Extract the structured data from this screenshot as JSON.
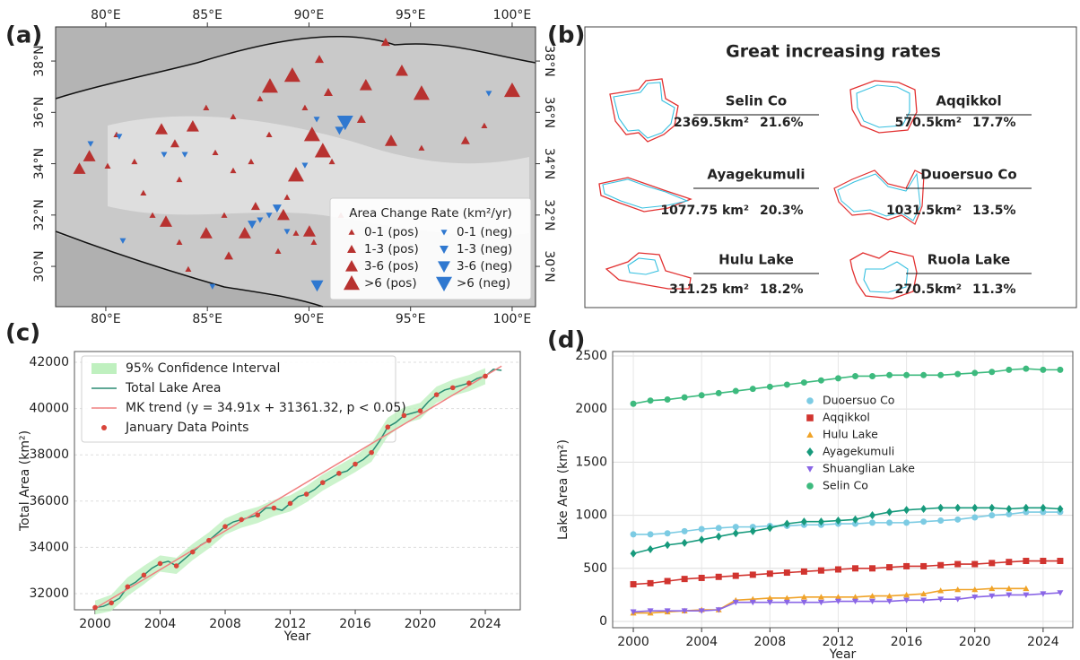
{
  "labels": {
    "a": "(a)",
    "b": "(b)",
    "c": "(c)",
    "d": "(d)"
  },
  "map": {
    "xlim": [
      77.53,
      101.15
    ],
    "ylim": [
      28.43,
      39.33
    ],
    "xticks": [
      {
        "value": 80,
        "label": "80°E"
      },
      {
        "value": 85,
        "label": "85°E"
      },
      {
        "value": 90,
        "label": "90°E"
      },
      {
        "value": 95,
        "label": "95°E"
      },
      {
        "value": 100,
        "label": "100°E"
      }
    ],
    "yticks": [
      {
        "value": 30,
        "label": "30°N"
      },
      {
        "value": 32,
        "label": "32°N"
      },
      {
        "value": 34,
        "label": "34°N"
      },
      {
        "value": 36,
        "label": "36°N"
      },
      {
        "value": 38,
        "label": "38°N"
      }
    ],
    "pos_color": "#b83230",
    "neg_color": "#2f78d0",
    "legend_title": "Area Change Rate (km²/yr)",
    "legend": [
      {
        "label": "0-1 (pos)"
      },
      {
        "label": "1-3 (pos)"
      },
      {
        "label": "3-6 (pos)"
      },
      {
        "label": ">6 (pos)"
      },
      {
        "label": "0-1 (neg)"
      },
      {
        "label": "1-3 (neg)"
      },
      {
        "label": "3-6 (neg)"
      },
      {
        "label": ">6 (neg)"
      }
    ],
    "points": [
      {
        "lon": 88.08,
        "lat": 37.02,
        "class": 3
      },
      {
        "lon": 89.18,
        "lat": 37.44,
        "class": 3
      },
      {
        "lon": 95.54,
        "lat": 36.74,
        "class": 3
      },
      {
        "lon": 100.0,
        "lat": 36.85,
        "class": 3
      },
      {
        "lon": 89.36,
        "lat": 33.56,
        "class": 3
      },
      {
        "lon": 90.15,
        "lat": 35.13,
        "class": 3
      },
      {
        "lon": 90.68,
        "lat": 34.5,
        "class": 3
      },
      {
        "lon": 91.78,
        "lat": 35.62,
        "class": 7
      },
      {
        "lon": 90.4,
        "lat": 29.26,
        "class": 6
      },
      {
        "lon": 82.74,
        "lat": 35.34,
        "class": 2
      },
      {
        "lon": 84.28,
        "lat": 35.45,
        "class": 2
      },
      {
        "lon": 78.7,
        "lat": 33.8,
        "class": 2
      },
      {
        "lon": 79.19,
        "lat": 34.29,
        "class": 2
      },
      {
        "lon": 90.02,
        "lat": 31.36,
        "class": 2
      },
      {
        "lon": 88.74,
        "lat": 32.0,
        "class": 2
      },
      {
        "lon": 86.84,
        "lat": 31.29,
        "class": 2
      },
      {
        "lon": 94.04,
        "lat": 34.89,
        "class": 2
      },
      {
        "lon": 94.57,
        "lat": 37.62,
        "class": 2
      },
      {
        "lon": 84.94,
        "lat": 31.29,
        "class": 2
      },
      {
        "lon": 82.96,
        "lat": 31.74,
        "class": 2
      },
      {
        "lon": 92.8,
        "lat": 37.06,
        "class": 2
      },
      {
        "lon": 93.77,
        "lat": 38.73,
        "class": 1
      },
      {
        "lon": 97.7,
        "lat": 34.9,
        "class": 1
      },
      {
        "lon": 90.95,
        "lat": 36.78,
        "class": 1
      },
      {
        "lon": 90.51,
        "lat": 38.07,
        "class": 1
      },
      {
        "lon": 92.58,
        "lat": 35.73,
        "class": 1
      },
      {
        "lon": 86.05,
        "lat": 30.41,
        "class": 1
      },
      {
        "lon": 87.37,
        "lat": 32.34,
        "class": 1
      },
      {
        "lon": 83.4,
        "lat": 34.78,
        "class": 1
      },
      {
        "lon": 80.53,
        "lat": 35.13,
        "class": 0
      },
      {
        "lon": 81.41,
        "lat": 34.08,
        "class": 0
      },
      {
        "lon": 81.85,
        "lat": 32.86,
        "class": 0
      },
      {
        "lon": 83.62,
        "lat": 33.38,
        "class": 0
      },
      {
        "lon": 85.39,
        "lat": 34.43,
        "class": 0
      },
      {
        "lon": 86.27,
        "lat": 35.83,
        "class": 0
      },
      {
        "lon": 87.15,
        "lat": 34.08,
        "class": 0
      },
      {
        "lon": 88.04,
        "lat": 35.13,
        "class": 0
      },
      {
        "lon": 83.62,
        "lat": 30.94,
        "class": 0
      },
      {
        "lon": 85.83,
        "lat": 31.99,
        "class": 0
      },
      {
        "lon": 82.3,
        "lat": 31.99,
        "class": 0
      },
      {
        "lon": 89.36,
        "lat": 31.29,
        "class": 0
      },
      {
        "lon": 88.48,
        "lat": 30.59,
        "class": 0
      },
      {
        "lon": 90.24,
        "lat": 30.94,
        "class": 0
      },
      {
        "lon": 91.13,
        "lat": 34.08,
        "class": 0
      },
      {
        "lon": 84.94,
        "lat": 36.18,
        "class": 0
      },
      {
        "lon": 87.59,
        "lat": 36.53,
        "class": 0
      },
      {
        "lon": 89.8,
        "lat": 36.18,
        "class": 0
      },
      {
        "lon": 95.54,
        "lat": 34.61,
        "class": 0
      },
      {
        "lon": 98.63,
        "lat": 35.48,
        "class": 0
      },
      {
        "lon": 80.09,
        "lat": 33.91,
        "class": 0
      },
      {
        "lon": 84.06,
        "lat": 29.89,
        "class": 0
      },
      {
        "lon": 91.57,
        "lat": 31.99,
        "class": 0
      },
      {
        "lon": 86.27,
        "lat": 33.73,
        "class": 0
      },
      {
        "lon": 88.92,
        "lat": 32.69,
        "class": 0
      },
      {
        "lon": 79.25,
        "lat": 34.78,
        "class": 4
      },
      {
        "lon": 80.66,
        "lat": 35.06,
        "class": 4
      },
      {
        "lon": 82.87,
        "lat": 34.36,
        "class": 4
      },
      {
        "lon": 83.89,
        "lat": 34.36,
        "class": 4
      },
      {
        "lon": 80.84,
        "lat": 31.0,
        "class": 4
      },
      {
        "lon": 85.25,
        "lat": 29.22,
        "class": 4
      },
      {
        "lon": 88.04,
        "lat": 31.99,
        "class": 4
      },
      {
        "lon": 87.59,
        "lat": 31.81,
        "class": 4
      },
      {
        "lon": 88.92,
        "lat": 31.36,
        "class": 4
      },
      {
        "lon": 90.38,
        "lat": 35.73,
        "class": 4
      },
      {
        "lon": 89.8,
        "lat": 33.94,
        "class": 4
      },
      {
        "lon": 98.85,
        "lat": 36.74,
        "class": 4
      },
      {
        "lon": 88.43,
        "lat": 32.27,
        "class": 5
      },
      {
        "lon": 87.2,
        "lat": 31.64,
        "class": 5
      },
      {
        "lon": 91.5,
        "lat": 35.3,
        "class": 5
      }
    ]
  },
  "outlines": {
    "title": "Great increasing rates",
    "lakes": [
      {
        "name": "Selin Co",
        "area": "2369.5km²",
        "rate": "21.6%"
      },
      {
        "name": "Aqqikkol",
        "area": "570.5km²",
        "rate": "17.7%"
      },
      {
        "name": "Ayagekumuli",
        "area": "1077.75 km²",
        "rate": "20.3%"
      },
      {
        "name": "Duoersuo Co",
        "area": "1031.5km²",
        "rate": "13.5%"
      },
      {
        "name": "Hulu Lake",
        "area": "311.25 km²",
        "rate": "18.2%"
      },
      {
        "name": "Ruola Lake",
        "area": "270.5km²",
        "rate": "11.3%"
      }
    ]
  },
  "chart_data": [
    {
      "type": "line",
      "xlabel": "Year",
      "ylabel": "Total Area (km²)",
      "xlim": [
        1998.73,
        2026.15
      ],
      "ylim": [
        31302,
        42465
      ],
      "xticks": [
        2000,
        2004,
        2008,
        2012,
        2016,
        2020,
        2024
      ],
      "yticks": [
        32000,
        34000,
        36000,
        38000,
        40000,
        42000
      ],
      "grid": "y",
      "series": [
        {
          "name": "95% Confidence Interval",
          "kind": "band",
          "color": "#bff0bf",
          "x": [
            2000,
            2001,
            2002,
            2003,
            2004,
            2005,
            2006,
            2007,
            2008,
            2009,
            2010,
            2011,
            2012,
            2013,
            2014,
            2015,
            2016,
            2017,
            2018,
            2019,
            2020,
            2021,
            2022,
            2023,
            2024
          ],
          "lower": [
            31100,
            31250,
            31900,
            32400,
            32950,
            32850,
            33450,
            33950,
            34550,
            34850,
            35050,
            35350,
            35550,
            35950,
            36450,
            36850,
            37250,
            37700,
            38800,
            39350,
            39550,
            40250,
            40550,
            40750,
            41050
          ],
          "upper": [
            31700,
            31950,
            32700,
            33200,
            33650,
            33550,
            34150,
            34650,
            35250,
            35550,
            35750,
            36050,
            36250,
            36650,
            37150,
            37550,
            37950,
            38500,
            39600,
            40050,
            40250,
            40950,
            41250,
            41450,
            41750
          ]
        },
        {
          "name": "Total Lake Area",
          "kind": "line",
          "color": "#2a8c74",
          "x": [
            2000,
            2000.5,
            2001,
            2001.5,
            2002,
            2002.5,
            2003,
            2003.5,
            2004,
            2004.5,
            2005,
            2005.5,
            2006,
            2006.5,
            2007,
            2007.5,
            2008,
            2008.5,
            2009,
            2009.5,
            2010,
            2010.5,
            2011,
            2011.5,
            2012,
            2012.5,
            2013,
            2013.5,
            2014,
            2014.5,
            2015,
            2015.5,
            2016,
            2016.5,
            2017,
            2017.5,
            2018,
            2018.5,
            2019,
            2019.5,
            2020,
            2020.5,
            2021,
            2021.5,
            2022,
            2022.5,
            2023,
            2023.5,
            2024,
            2024.5,
            2025
          ],
          "values": [
            31400,
            31450,
            31600,
            31800,
            32300,
            32500,
            32800,
            33100,
            33300,
            33400,
            33200,
            33500,
            33800,
            34100,
            34300,
            34600,
            34900,
            35100,
            35200,
            35300,
            35400,
            35700,
            35700,
            35600,
            35900,
            36200,
            36300,
            36500,
            36800,
            37000,
            37200,
            37300,
            37600,
            37800,
            38100,
            38600,
            39200,
            39400,
            39700,
            39800,
            39900,
            40300,
            40600,
            40800,
            40900,
            41000,
            41100,
            41300,
            41400,
            41700,
            41650
          ]
        },
        {
          "name": "MK trend (y = 34.91x + 31361.32, p < 0.05)",
          "kind": "line",
          "color": "#f08080",
          "x": [
            2000,
            2025
          ],
          "values": [
            31361.32,
            41834.32
          ]
        },
        {
          "name": "January Data Points",
          "kind": "points",
          "color": "#d9453a",
          "x": [
            2000,
            2001,
            2002,
            2003,
            2004,
            2005,
            2006,
            2007,
            2008,
            2009,
            2010,
            2011,
            2012,
            2013,
            2014,
            2015,
            2016,
            2017,
            2018,
            2019,
            2020,
            2021,
            2022,
            2023,
            2024
          ],
          "values": [
            31400,
            31600,
            32300,
            32800,
            33300,
            33200,
            33800,
            34300,
            34900,
            35200,
            35400,
            35700,
            35900,
            36300,
            36800,
            37200,
            37600,
            38100,
            39200,
            39700,
            39900,
            40600,
            40900,
            41100,
            41400
          ]
        }
      ]
    },
    {
      "type": "line",
      "xlabel": "Year",
      "ylabel": "Lake Area (km²)",
      "xlim": [
        1998.79,
        2025.74
      ],
      "ylim": [
        -59,
        2542
      ],
      "xticks": [
        2000,
        2004,
        2008,
        2012,
        2016,
        2020,
        2024
      ],
      "yticks": [
        0,
        500,
        1000,
        1500,
        2000,
        2500
      ],
      "grid": "both",
      "x": [
        2000,
        2001,
        2002,
        2003,
        2004,
        2005,
        2006,
        2007,
        2008,
        2009,
        2010,
        2011,
        2012,
        2013,
        2014,
        2015,
        2016,
        2017,
        2018,
        2019,
        2020,
        2021,
        2022,
        2023,
        2024,
        2025
      ],
      "series": [
        {
          "name": "Duoersuo Co",
          "color": "#7ccbe3",
          "marker": "circle",
          "values": [
            820,
            820,
            830,
            850,
            870,
            880,
            890,
            890,
            900,
            900,
            910,
            910,
            920,
            920,
            930,
            930,
            930,
            940,
            950,
            960,
            980,
            1000,
            1010,
            1030,
            1030,
            1030
          ]
        },
        {
          "name": "Aqqikkol",
          "color": "#d1342f",
          "marker": "square",
          "values": [
            350,
            360,
            380,
            400,
            410,
            420,
            430,
            440,
            450,
            460,
            470,
            480,
            490,
            500,
            500,
            510,
            520,
            520,
            530,
            540,
            540,
            550,
            560,
            570,
            570,
            570
          ]
        },
        {
          "name": "Hulu Lake",
          "color": "#f0a328",
          "marker": "triangle-up",
          "values": [
            80,
            80,
            90,
            100,
            110,
            110,
            200,
            210,
            220,
            220,
            230,
            230,
            230,
            230,
            240,
            240,
            250,
            260,
            290,
            300,
            300,
            310,
            310,
            310,
            null,
            null
          ]
        },
        {
          "name": "Ayagekumuli",
          "color": "#179a7c",
          "marker": "diamond",
          "values": [
            640,
            680,
            720,
            740,
            770,
            800,
            830,
            850,
            880,
            920,
            940,
            940,
            950,
            960,
            1000,
            1030,
            1050,
            1060,
            1070,
            1070,
            1070,
            1070,
            1060,
            1070,
            1070,
            1060
          ]
        },
        {
          "name": "Shuanglian Lake",
          "color": "#8a66e6",
          "marker": "triangle-down",
          "values": [
            90,
            100,
            100,
            100,
            100,
            110,
            180,
            180,
            180,
            180,
            180,
            180,
            190,
            190,
            190,
            190,
            200,
            200,
            210,
            210,
            230,
            240,
            250,
            250,
            260,
            270
          ]
        },
        {
          "name": "Selin Co",
          "color": "#3dba7e",
          "marker": "circle",
          "values": [
            2050,
            2080,
            2090,
            2110,
            2130,
            2150,
            2170,
            2190,
            2210,
            2230,
            2250,
            2270,
            2290,
            2310,
            2310,
            2320,
            2320,
            2320,
            2320,
            2330,
            2340,
            2350,
            2370,
            2380,
            2370,
            2370
          ]
        }
      ]
    }
  ]
}
